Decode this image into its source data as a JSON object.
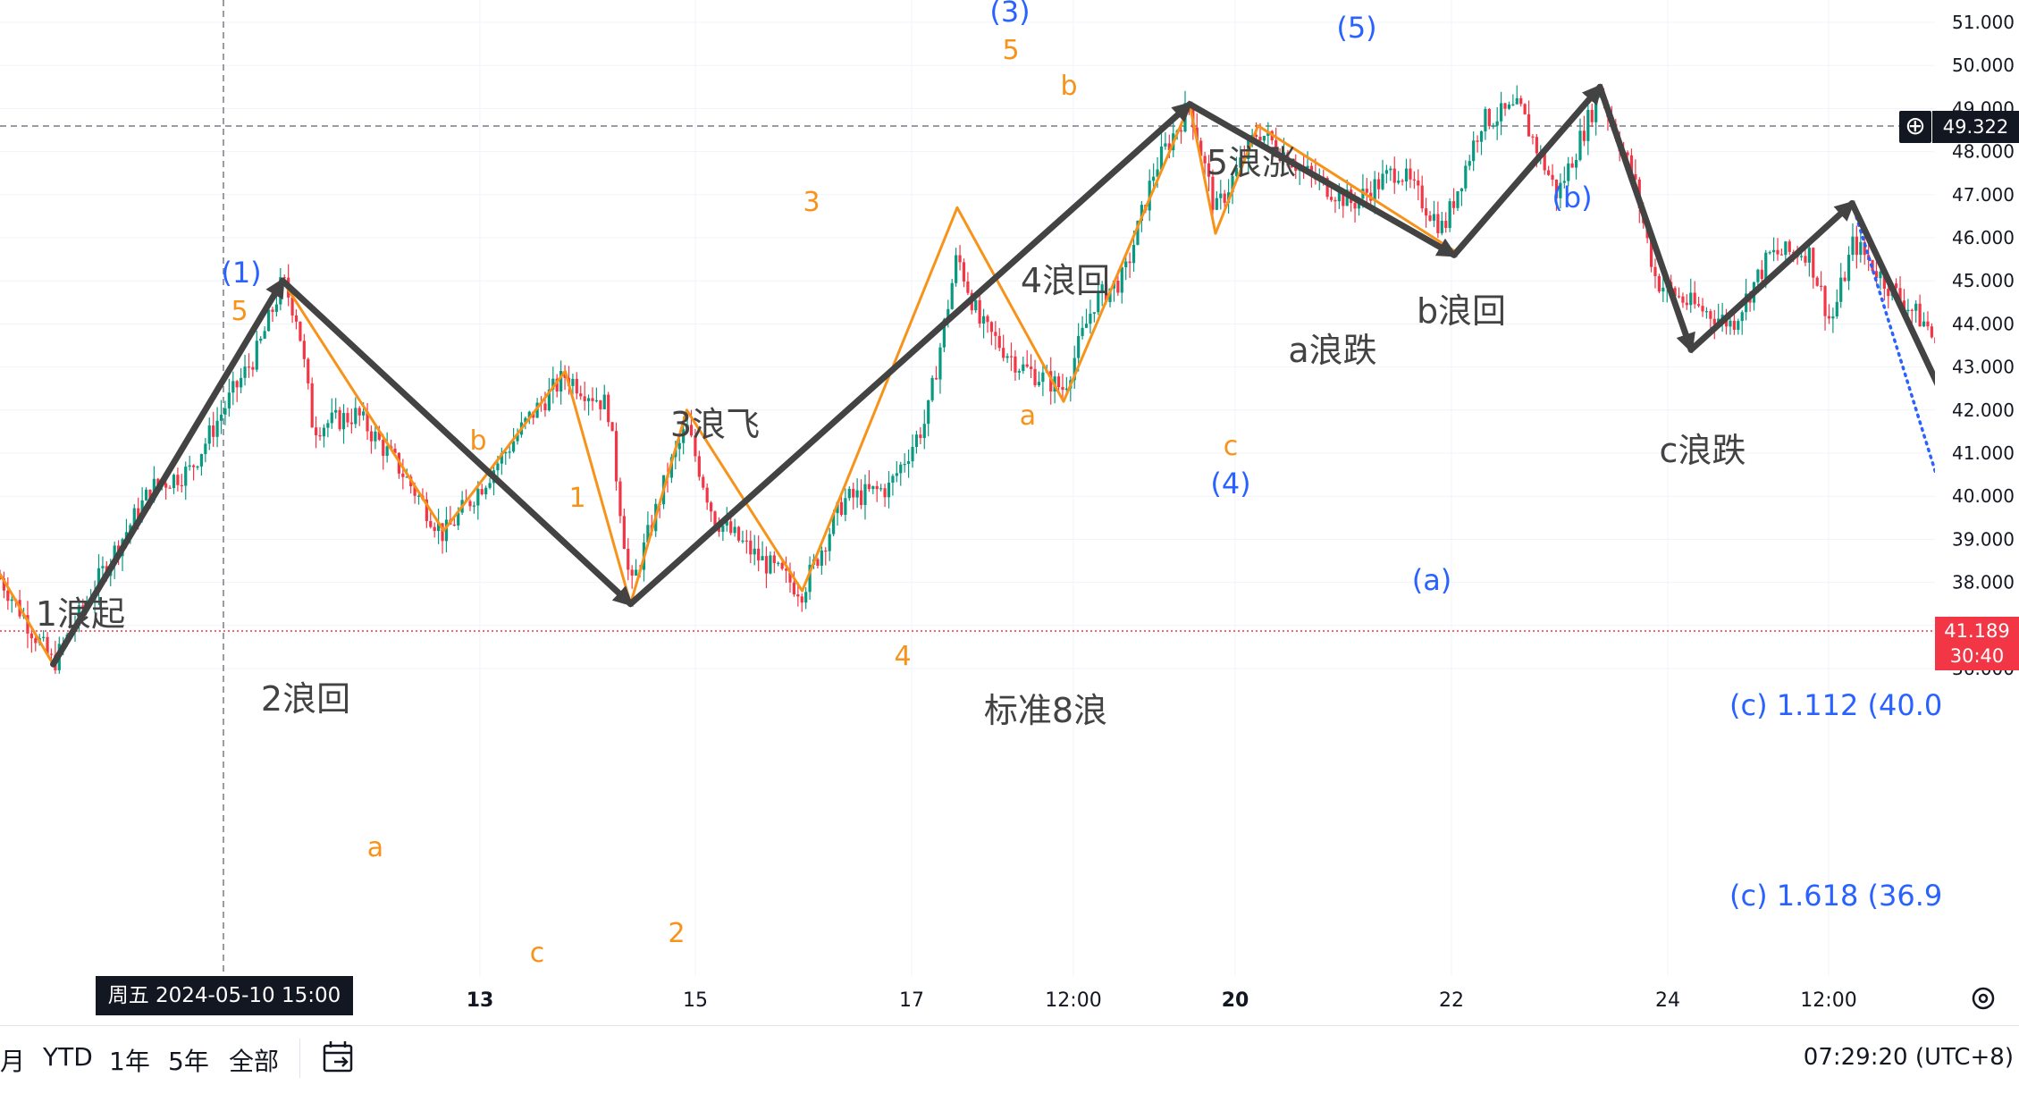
{
  "chart_data": {
    "type": "candlestick",
    "y_axis": {
      "min": 35.6,
      "max": 51.3,
      "ticks": [
        "51.000",
        "50.000",
        "49.000",
        "48.000",
        "47.000",
        "46.000",
        "45.000",
        "44.000",
        "43.000",
        "42.000",
        "41.000",
        "40.000",
        "39.000",
        "38.000",
        "37.000",
        "36.000"
      ]
    },
    "x_axis": {
      "ticks": [
        "13",
        "15",
        "17",
        "12:00",
        "20",
        "22",
        "24",
        "12:00"
      ]
    },
    "current_price": "41.189",
    "countdown": "30:40",
    "crosshair_price": "49.322",
    "crosshair_date": "周五 2024-05-10   15:00",
    "price_path": [
      [
        0,
        38.1
      ],
      [
        35,
        36.1
      ],
      [
        70,
        38.4
      ],
      [
        100,
        40.2
      ],
      [
        125,
        40.6
      ],
      [
        150,
        42.2
      ],
      [
        170,
        43.4
      ],
      [
        186,
        45.0
      ],
      [
        196,
        44.1
      ],
      [
        206,
        41.6
      ],
      [
        235,
        41.9
      ],
      [
        262,
        40.7
      ],
      [
        292,
        39.1
      ],
      [
        320,
        40.4
      ],
      [
        350,
        41.9
      ],
      [
        372,
        42.8
      ],
      [
        400,
        42.1
      ],
      [
        415,
        37.8
      ],
      [
        440,
        40.6
      ],
      [
        452,
        41.6
      ],
      [
        470,
        39.5
      ],
      [
        498,
        38.6
      ],
      [
        528,
        37.8
      ],
      [
        555,
        39.9
      ],
      [
        585,
        40.2
      ],
      [
        610,
        41.8
      ],
      [
        630,
        45.6
      ],
      [
        645,
        44.0
      ],
      [
        672,
        43.0
      ],
      [
        700,
        42.5
      ],
      [
        720,
        44.5
      ],
      [
        740,
        45.1
      ],
      [
        760,
        47.6
      ],
      [
        783,
        49.1
      ],
      [
        800,
        46.6
      ],
      [
        828,
        48.5
      ],
      [
        860,
        47.5
      ],
      [
        890,
        46.8
      ],
      [
        920,
        47.6
      ],
      [
        950,
        46.2
      ],
      [
        975,
        48.7
      ],
      [
        1000,
        49.0
      ],
      [
        1025,
        47.0
      ],
      [
        1053,
        49.4
      ],
      [
        1075,
        47.4
      ],
      [
        1090,
        45.0
      ],
      [
        1110,
        44.5
      ],
      [
        1140,
        44.0
      ],
      [
        1165,
        45.6
      ],
      [
        1190,
        45.7
      ],
      [
        1205,
        44.0
      ],
      [
        1220,
        45.9
      ],
      [
        1245,
        44.8
      ],
      [
        1270,
        43.9
      ],
      [
        1285,
        41.9
      ],
      [
        1300,
        40.8
      ],
      [
        1320,
        41.1
      ]
    ],
    "primary_wave_lines": [
      [
        [
          35,
          36.1
        ],
        [
          186,
          45.0
        ],
        [
          415,
          37.5
        ],
        [
          783,
          49.1
        ],
        [
          957,
          45.6
        ],
        [
          1053,
          49.5
        ],
        [
          1113,
          43.4
        ],
        [
          1219,
          46.8
        ],
        [
          1310,
          40.0
        ]
      ]
    ],
    "blue_wave_lines": [
      [
        [
          186,
          45.0
        ],
        [
          415,
          37.5
        ],
        [
          783,
          49.1
        ],
        [
          957,
          45.6
        ],
        [
          1053,
          49.5
        ],
        [
          1113,
          43.4
        ],
        [
          1219,
          46.8
        ]
      ]
    ],
    "blue_dotted_projection": [
      [
        [
          1219,
          46.8
        ],
        [
          1306,
          36.9
        ],
        [
          1320,
          37.7
        ]
      ]
    ],
    "orange_wave_lines": [
      [
        [
          0,
          38.2
        ],
        [
          35,
          36.1
        ],
        [
          186,
          45.0
        ],
        [
          292,
          39.2
        ],
        [
          372,
          42.9
        ],
        [
          415,
          37.5
        ],
        [
          452,
          42.0
        ],
        [
          528,
          37.8
        ],
        [
          630,
          46.7
        ],
        [
          700,
          42.2
        ],
        [
          783,
          49.1
        ],
        [
          800,
          46.1
        ],
        [
          828,
          48.6
        ],
        [
          957,
          45.7
        ]
      ]
    ],
    "wave_labels": {
      "orange": [
        "5",
        "5",
        "b",
        "a",
        "c",
        "1",
        "2",
        "3",
        "4",
        "b",
        "a",
        "c"
      ],
      "blue": [
        "(1)",
        "(3)",
        "(4)",
        "(5)",
        "(a)",
        "(b)"
      ],
      "dark": [
        "1浪起",
        "2浪回",
        "3浪飞",
        "4浪回",
        "5浪涨",
        "a浪跌",
        "b浪回",
        "c浪跌",
        "标准8浪"
      ]
    },
    "fib_targets": [
      "(c) 1.112 (40.0",
      "(c) 1.618 (36.9"
    ],
    "colors": {
      "up": "#089981",
      "down": "#f23645",
      "orange": "#f7931a",
      "blue": "#2962ff",
      "dark": "#434343"
    }
  },
  "bottom_bar": {
    "ranges": [
      "月",
      "YTD",
      "1年",
      "5年",
      "全部"
    ],
    "time": "07:29:20 (UTC+8)"
  }
}
